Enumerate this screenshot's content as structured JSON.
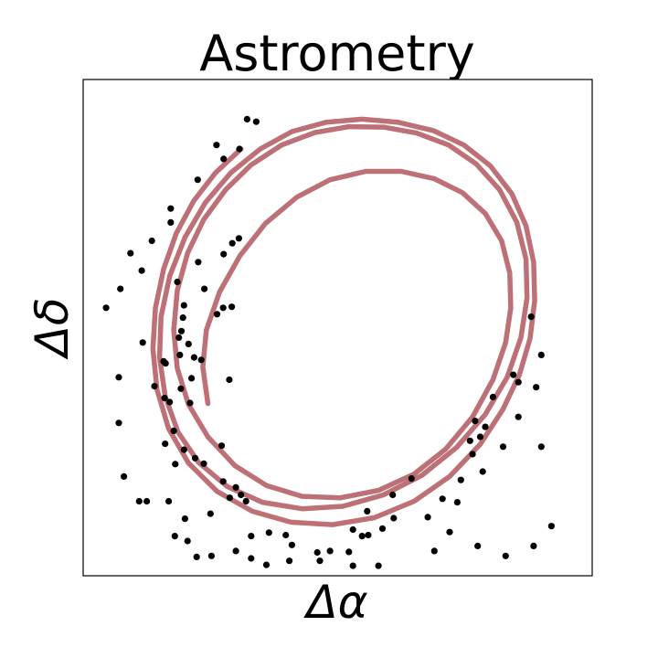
{
  "chart_data": {
    "type": "scatter",
    "title": "Astrometry",
    "xlabel": "Δα",
    "ylabel": "Δδ",
    "xlim": [
      0,
      1
    ],
    "ylim": [
      0,
      1
    ],
    "grid": false,
    "ticks": false,
    "orbit_color": "#bd7076",
    "point_color": "#000000",
    "series": [
      {
        "type": "line",
        "points": [
          [
            0.245,
            0.347
          ],
          [
            0.235,
            0.421
          ],
          [
            0.242,
            0.495
          ],
          [
            0.268,
            0.572
          ],
          [
            0.308,
            0.645
          ],
          [
            0.358,
            0.71
          ],
          [
            0.42,
            0.763
          ],
          [
            0.485,
            0.798
          ],
          [
            0.555,
            0.815
          ],
          [
            0.625,
            0.815
          ],
          [
            0.69,
            0.8
          ],
          [
            0.745,
            0.772
          ],
          [
            0.79,
            0.73
          ],
          [
            0.822,
            0.675
          ],
          [
            0.838,
            0.61
          ],
          [
            0.84,
            0.54
          ],
          [
            0.83,
            0.47
          ],
          [
            0.805,
            0.395
          ],
          [
            0.765,
            0.32
          ],
          [
            0.712,
            0.255
          ],
          [
            0.65,
            0.205
          ],
          [
            0.58,
            0.172
          ],
          [
            0.505,
            0.157
          ],
          [
            0.43,
            0.16
          ],
          [
            0.36,
            0.182
          ],
          [
            0.298,
            0.222
          ],
          [
            0.245,
            0.28
          ],
          [
            0.207,
            0.345
          ],
          [
            0.185,
            0.418
          ],
          [
            0.178,
            0.495
          ],
          [
            0.185,
            0.575
          ],
          [
            0.205,
            0.65
          ],
          [
            0.237,
            0.718
          ],
          [
            0.28,
            0.778
          ],
          [
            0.33,
            0.828
          ],
          [
            0.39,
            0.868
          ],
          [
            0.455,
            0.893
          ],
          [
            0.522,
            0.905
          ],
          [
            0.59,
            0.904
          ],
          [
            0.655,
            0.892
          ],
          [
            0.718,
            0.868
          ],
          [
            0.772,
            0.83
          ],
          [
            0.818,
            0.778
          ],
          [
            0.852,
            0.712
          ],
          [
            0.87,
            0.638
          ],
          [
            0.872,
            0.56
          ],
          [
            0.86,
            0.48
          ],
          [
            0.833,
            0.4
          ],
          [
            0.79,
            0.325
          ],
          [
            0.733,
            0.258
          ],
          [
            0.665,
            0.202
          ],
          [
            0.59,
            0.163
          ],
          [
            0.51,
            0.14
          ],
          [
            0.43,
            0.135
          ],
          [
            0.352,
            0.148
          ],
          [
            0.283,
            0.18
          ],
          [
            0.227,
            0.228
          ],
          [
            0.186,
            0.29
          ],
          [
            0.161,
            0.362
          ],
          [
            0.15,
            0.44
          ],
          [
            0.153,
            0.522
          ],
          [
            0.17,
            0.604
          ],
          [
            0.2,
            0.682
          ],
          [
            0.24,
            0.752
          ],
          [
            0.29,
            0.812
          ],
          [
            0.348,
            0.86
          ],
          [
            0.41,
            0.895
          ],
          [
            0.478,
            0.914
          ],
          [
            0.548,
            0.92
          ],
          [
            0.618,
            0.914
          ],
          [
            0.688,
            0.897
          ],
          [
            0.748,
            0.868
          ],
          [
            0.8,
            0.826
          ],
          [
            0.842,
            0.77
          ],
          [
            0.87,
            0.705
          ],
          [
            0.885,
            0.632
          ],
          [
            0.887,
            0.555
          ],
          [
            0.878,
            0.478
          ],
          [
            0.857,
            0.405
          ],
          [
            0.825,
            0.336
          ],
          [
            0.78,
            0.265
          ],
          [
            0.72,
            0.2
          ],
          [
            0.65,
            0.15
          ],
          [
            0.572,
            0.117
          ],
          [
            0.49,
            0.103
          ],
          [
            0.408,
            0.108
          ],
          [
            0.332,
            0.13
          ],
          [
            0.263,
            0.17
          ],
          [
            0.207,
            0.227
          ],
          [
            0.168,
            0.296
          ],
          [
            0.145,
            0.375
          ],
          [
            0.137,
            0.458
          ],
          [
            0.142,
            0.54
          ],
          [
            0.158,
            0.618
          ],
          [
            0.183,
            0.69
          ],
          [
            0.217,
            0.755
          ],
          [
            0.26,
            0.812
          ],
          [
            0.31,
            0.86
          ]
        ]
      },
      {
        "type": "scatter",
        "points": [
          [
            0.045,
            0.54
          ],
          [
            0.073,
            0.578
          ],
          [
            0.093,
            0.65
          ],
          [
            0.07,
            0.4
          ],
          [
            0.07,
            0.308
          ],
          [
            0.115,
            0.615
          ],
          [
            0.135,
            0.675
          ],
          [
            0.172,
            0.712
          ],
          [
            0.172,
            0.74
          ],
          [
            0.225,
            0.798
          ],
          [
            0.262,
            0.868
          ],
          [
            0.322,
            0.92
          ],
          [
            0.34,
            0.915
          ],
          [
            0.185,
            0.592
          ],
          [
            0.226,
            0.632
          ],
          [
            0.276,
            0.648
          ],
          [
            0.293,
            0.67
          ],
          [
            0.306,
            0.68
          ],
          [
            0.307,
            0.86
          ],
          [
            0.276,
            0.84
          ],
          [
            0.238,
            0.578
          ],
          [
            0.196,
            0.52
          ],
          [
            0.198,
            0.545
          ],
          [
            0.275,
            0.54
          ],
          [
            0.292,
            0.542
          ],
          [
            0.17,
            0.35
          ],
          [
            0.162,
            0.428
          ],
          [
            0.19,
            0.445
          ],
          [
            0.232,
            0.435
          ],
          [
            0.263,
            0.527
          ],
          [
            0.14,
            0.382
          ],
          [
            0.158,
            0.432
          ],
          [
            0.117,
            0.47
          ],
          [
            0.188,
            0.48
          ],
          [
            0.193,
            0.493
          ],
          [
            0.207,
            0.467
          ],
          [
            0.287,
            0.395
          ],
          [
            0.21,
            0.348
          ],
          [
            0.213,
            0.398
          ],
          [
            0.192,
            0.377
          ],
          [
            0.16,
            0.358
          ],
          [
            0.218,
            0.44
          ],
          [
            0.161,
            0.266
          ],
          [
            0.178,
            0.292
          ],
          [
            0.181,
            0.225
          ],
          [
            0.22,
            0.237
          ],
          [
            0.237,
            0.226
          ],
          [
            0.198,
            0.254
          ],
          [
            0.275,
            0.19
          ],
          [
            0.272,
            0.262
          ],
          [
            0.3,
            0.178
          ],
          [
            0.288,
            0.157
          ],
          [
            0.32,
            0.15
          ],
          [
            0.31,
            0.163
          ],
          [
            0.2,
            0.115
          ],
          [
            0.25,
            0.125
          ],
          [
            0.33,
            0.08
          ],
          [
            0.365,
            0.087
          ],
          [
            0.398,
            0.082
          ],
          [
            0.41,
            0.062
          ],
          [
            0.46,
            0.047
          ],
          [
            0.485,
            0.05
          ],
          [
            0.522,
            0.048
          ],
          [
            0.53,
            0.093
          ],
          [
            0.548,
            0.08
          ],
          [
            0.558,
            0.13
          ],
          [
            0.56,
            0.082
          ],
          [
            0.588,
            0.095
          ],
          [
            0.608,
            0.163
          ],
          [
            0.61,
            0.116
          ],
          [
            0.645,
            0.196
          ],
          [
            0.677,
            0.118
          ],
          [
            0.706,
            0.155
          ],
          [
            0.735,
            0.148
          ],
          [
            0.742,
            0.193
          ],
          [
            0.765,
            0.245
          ],
          [
            0.79,
            0.3
          ],
          [
            0.805,
            0.36
          ],
          [
            0.825,
            0.26
          ],
          [
            0.845,
            0.405
          ],
          [
            0.855,
            0.39
          ],
          [
            0.88,
            0.522
          ],
          [
            0.9,
            0.445
          ],
          [
            0.89,
            0.38
          ],
          [
            0.855,
            0.32
          ],
          [
            0.785,
            0.21
          ],
          [
            0.76,
            0.272
          ],
          [
            0.77,
            0.312
          ],
          [
            0.78,
            0.28
          ],
          [
            0.9,
            0.26
          ],
          [
            0.92,
            0.1
          ],
          [
            0.885,
            0.06
          ],
          [
            0.83,
            0.04
          ],
          [
            0.775,
            0.06
          ],
          [
            0.72,
            0.088
          ],
          [
            0.69,
            0.05
          ],
          [
            0.58,
            0.02
          ],
          [
            0.53,
            0.02
          ],
          [
            0.465,
            0.03
          ],
          [
            0.405,
            0.03
          ],
          [
            0.36,
            0.022
          ],
          [
            0.33,
            0.035
          ],
          [
            0.3,
            0.05
          ],
          [
            0.252,
            0.04
          ],
          [
            0.223,
            0.038
          ],
          [
            0.205,
            0.07
          ],
          [
            0.18,
            0.08
          ],
          [
            0.168,
            0.15
          ],
          [
            0.125,
            0.15
          ],
          [
            0.11,
            0.15
          ],
          [
            0.08,
            0.2
          ]
        ]
      }
    ]
  }
}
